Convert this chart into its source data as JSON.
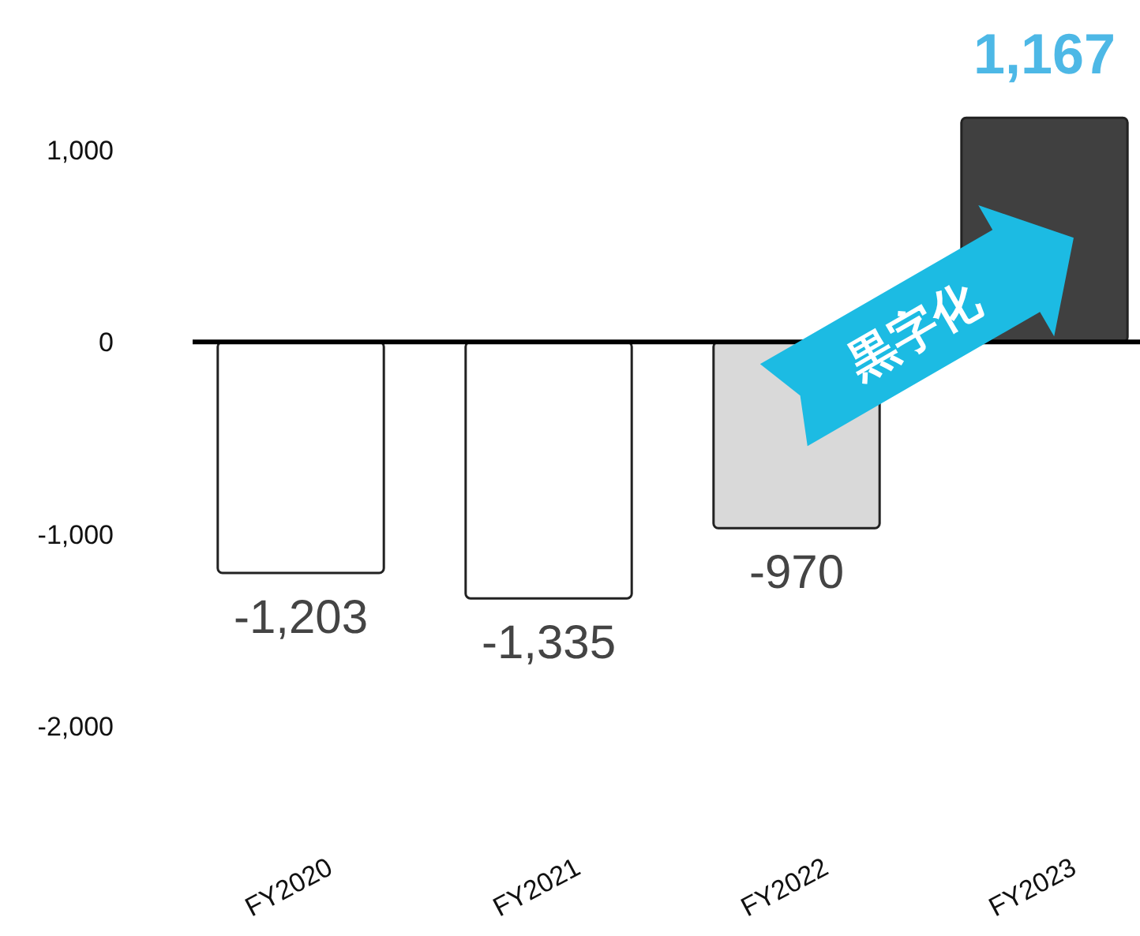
{
  "chart_data": {
    "type": "bar",
    "categories": [
      "FY2020",
      "FY2021",
      "FY2022",
      "FY2023"
    ],
    "values": [
      -1203,
      -1335,
      -970,
      1167
    ],
    "colors": [
      "#ffffff",
      "#ffffff",
      "#d9d9d9",
      "#404040"
    ],
    "value_labels": [
      "-1,203",
      "-1,335",
      "-970",
      "1,167"
    ],
    "yticks": [
      {
        "value": 1000,
        "label": "1,000"
      },
      0,
      {
        "value": -1000,
        "label": "-1,000"
      },
      {
        "value": -2000,
        "label": "-2,000"
      }
    ],
    "ref_lines": [
      {
        "axis": "y",
        "value": 0,
        "color": "#000000"
      }
    ],
    "annotations": [
      "黒字化"
    ],
    "ylim": [
      -2000,
      1167
    ],
    "grid": false
  }
}
